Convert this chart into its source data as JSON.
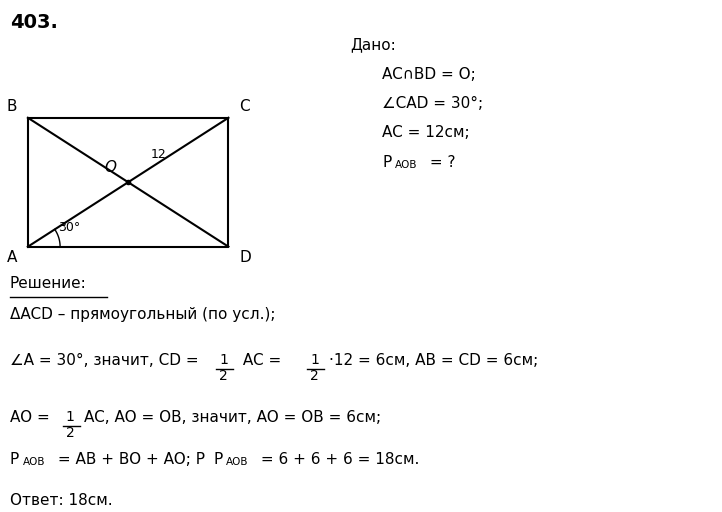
{
  "problem_number": "403.",
  "background_color": "#ffffff",
  "text_color": "#000000",
  "dado_title": "Дано:",
  "dado_line1": "AC∩BD = O;",
  "dado_line2": "∠CAD = 30°;",
  "dado_line3": "AC = 12см;",
  "dado_line4_p": "P",
  "dado_line4_sub": "АОВ",
  "dado_line4_rest": " = ?",
  "solution_header": "Решение:",
  "sol_line1": "ΔACD – прямоугольный (по усл.);",
  "sol_line2_pre": "∠A = 30°, значит, CD = ",
  "sol_line2_mid": " AC = ",
  "sol_line2_post": "·12 = 6см, AB = CD = 6см;",
  "sol_line3_pre": "AO = ",
  "sol_line3_post": "AC, AO = OB, значит, AO = OB = 6см;",
  "sol_line4_pre": " = AB + BO + AO; P",
  "sol_line4_sub": "АОВ",
  "sol_line4_post": " = 6 + 6 + 6 = 18см.",
  "sol_line5": "Ответ: 18см.",
  "fig_width": 7.22,
  "fig_height": 5.12
}
